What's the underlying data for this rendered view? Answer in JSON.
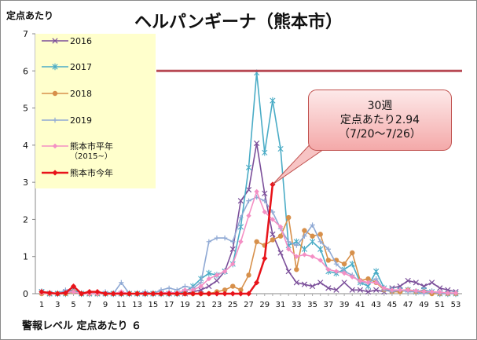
{
  "title": "ヘルパンギーナ（熊本市）",
  "footer": "警報レベル 定点あたり ６",
  "callout": {
    "line1": "30週",
    "line2": "定点あたり2.94",
    "line3": "（7/20～7/26）",
    "point_week": 30,
    "point_value": 2.94
  },
  "chart_data": {
    "type": "line",
    "ylabel": "定点あたり",
    "ylim": [
      0,
      7
    ],
    "yticks": [
      0,
      1,
      2,
      3,
      4,
      5,
      6,
      7
    ],
    "xlim": [
      1,
      53
    ],
    "xticks": [
      1,
      3,
      5,
      7,
      9,
      11,
      13,
      15,
      17,
      19,
      21,
      23,
      25,
      27,
      29,
      31,
      33,
      35,
      37,
      39,
      41,
      43,
      45,
      47,
      49,
      51,
      53
    ],
    "alert_level": 6,
    "series": [
      {
        "name": "2016",
        "color": "#7b4f9a",
        "marker": "x",
        "values": [
          0.05,
          0,
          0,
          0.05,
          0.1,
          0,
          0,
          0,
          0,
          0,
          0,
          0,
          0,
          0,
          0,
          0,
          0,
          0,
          0,
          0.05,
          0.1,
          0.2,
          0.35,
          0.6,
          1.2,
          2.5,
          2.8,
          4.05,
          2.7,
          1.6,
          1.1,
          0.6,
          0.3,
          0.25,
          0.2,
          0.3,
          0.15,
          0.1,
          0.3,
          0.1,
          0.1,
          0.05,
          0.1,
          0.05,
          0.15,
          0.2,
          0.35,
          0.3,
          0.2,
          0.3,
          0.15,
          0.1,
          0.05
        ]
      },
      {
        "name": "2017",
        "color": "#4aacc6",
        "marker": "star",
        "values": [
          0.05,
          0,
          0,
          0,
          0.1,
          0,
          0,
          0,
          0,
          0,
          0,
          0,
          0,
          0,
          0,
          0,
          0,
          0,
          0.05,
          0.2,
          0.4,
          0.55,
          0.5,
          0.6,
          0.8,
          1.8,
          3.4,
          5.95,
          3.8,
          5.2,
          3.9,
          1.3,
          1.4,
          1.2,
          1.4,
          1.2,
          0.6,
          0.55,
          0.65,
          0.8,
          0.3,
          0.2,
          0.6,
          0.15,
          0.1,
          0.1,
          0.1,
          0.05,
          0.1,
          0.05,
          0,
          0,
          0
        ]
      },
      {
        "name": "2018",
        "color": "#d7904b",
        "marker": "circle",
        "values": [
          0,
          0,
          0,
          0,
          0.05,
          0,
          0,
          0,
          0,
          0,
          0,
          0,
          0,
          0,
          0,
          0,
          0,
          0,
          0,
          0,
          0,
          0,
          0.05,
          0.1,
          0.2,
          0.1,
          0.5,
          1.4,
          1.3,
          1.45,
          1.55,
          2.05,
          0.65,
          1.7,
          1.55,
          1.6,
          0.9,
          0.9,
          0.8,
          1.1,
          0.35,
          0.4,
          0.3,
          0.1,
          0.05,
          0.05,
          0.1,
          0.05,
          0.05,
          0,
          0,
          0,
          0
        ]
      },
      {
        "name": "2019",
        "color": "#8fa9d4",
        "marker": "plus",
        "values": [
          0.05,
          0,
          0,
          0.1,
          0.05,
          0,
          0,
          0,
          0.05,
          0,
          0.3,
          0,
          0,
          0.05,
          0,
          0.1,
          0.15,
          0.1,
          0.2,
          0.15,
          0.3,
          1.4,
          1.5,
          1.5,
          1.4,
          2.05,
          2.5,
          2.6,
          2.5,
          2.2,
          1.75,
          1.4,
          1.3,
          1.55,
          1.85,
          1.4,
          1.2,
          0.8,
          0.6,
          0.5,
          0.3,
          0.3,
          0.4,
          0.1,
          0.05,
          0.1,
          0.05,
          0.05,
          0,
          0.05,
          0,
          0,
          0
        ]
      },
      {
        "name": "熊本市平年",
        "name_sub": "（2015~）",
        "color": "#f48fc4",
        "marker": "diamond",
        "values": [
          0.02,
          0,
          0,
          0.03,
          0.05,
          0,
          0,
          0,
          0.01,
          0,
          0.05,
          0,
          0,
          0.01,
          0,
          0.02,
          0.03,
          0.02,
          0.1,
          0.1,
          0.2,
          0.4,
          0.5,
          0.6,
          0.8,
          1.4,
          2.1,
          2.75,
          2.2,
          2.0,
          1.8,
          1.2,
          1.0,
          1.05,
          1.0,
          0.9,
          0.65,
          0.6,
          0.55,
          0.45,
          0.35,
          0.3,
          0.3,
          0.15,
          0.1,
          0.1,
          0.1,
          0.08,
          0.06,
          0.05,
          0.04,
          0.02,
          0.02
        ]
      },
      {
        "name": "熊本市今年",
        "color": "#e8131a",
        "marker": "diamond",
        "values": [
          0.05,
          0.02,
          0,
          0.02,
          0.2,
          0,
          0.05,
          0.05,
          0,
          0,
          0,
          0,
          0,
          0,
          0,
          0,
          0,
          0,
          0,
          0,
          0,
          0,
          0,
          0,
          0,
          0,
          0,
          0.3,
          0.95,
          2.94
        ]
      }
    ]
  }
}
